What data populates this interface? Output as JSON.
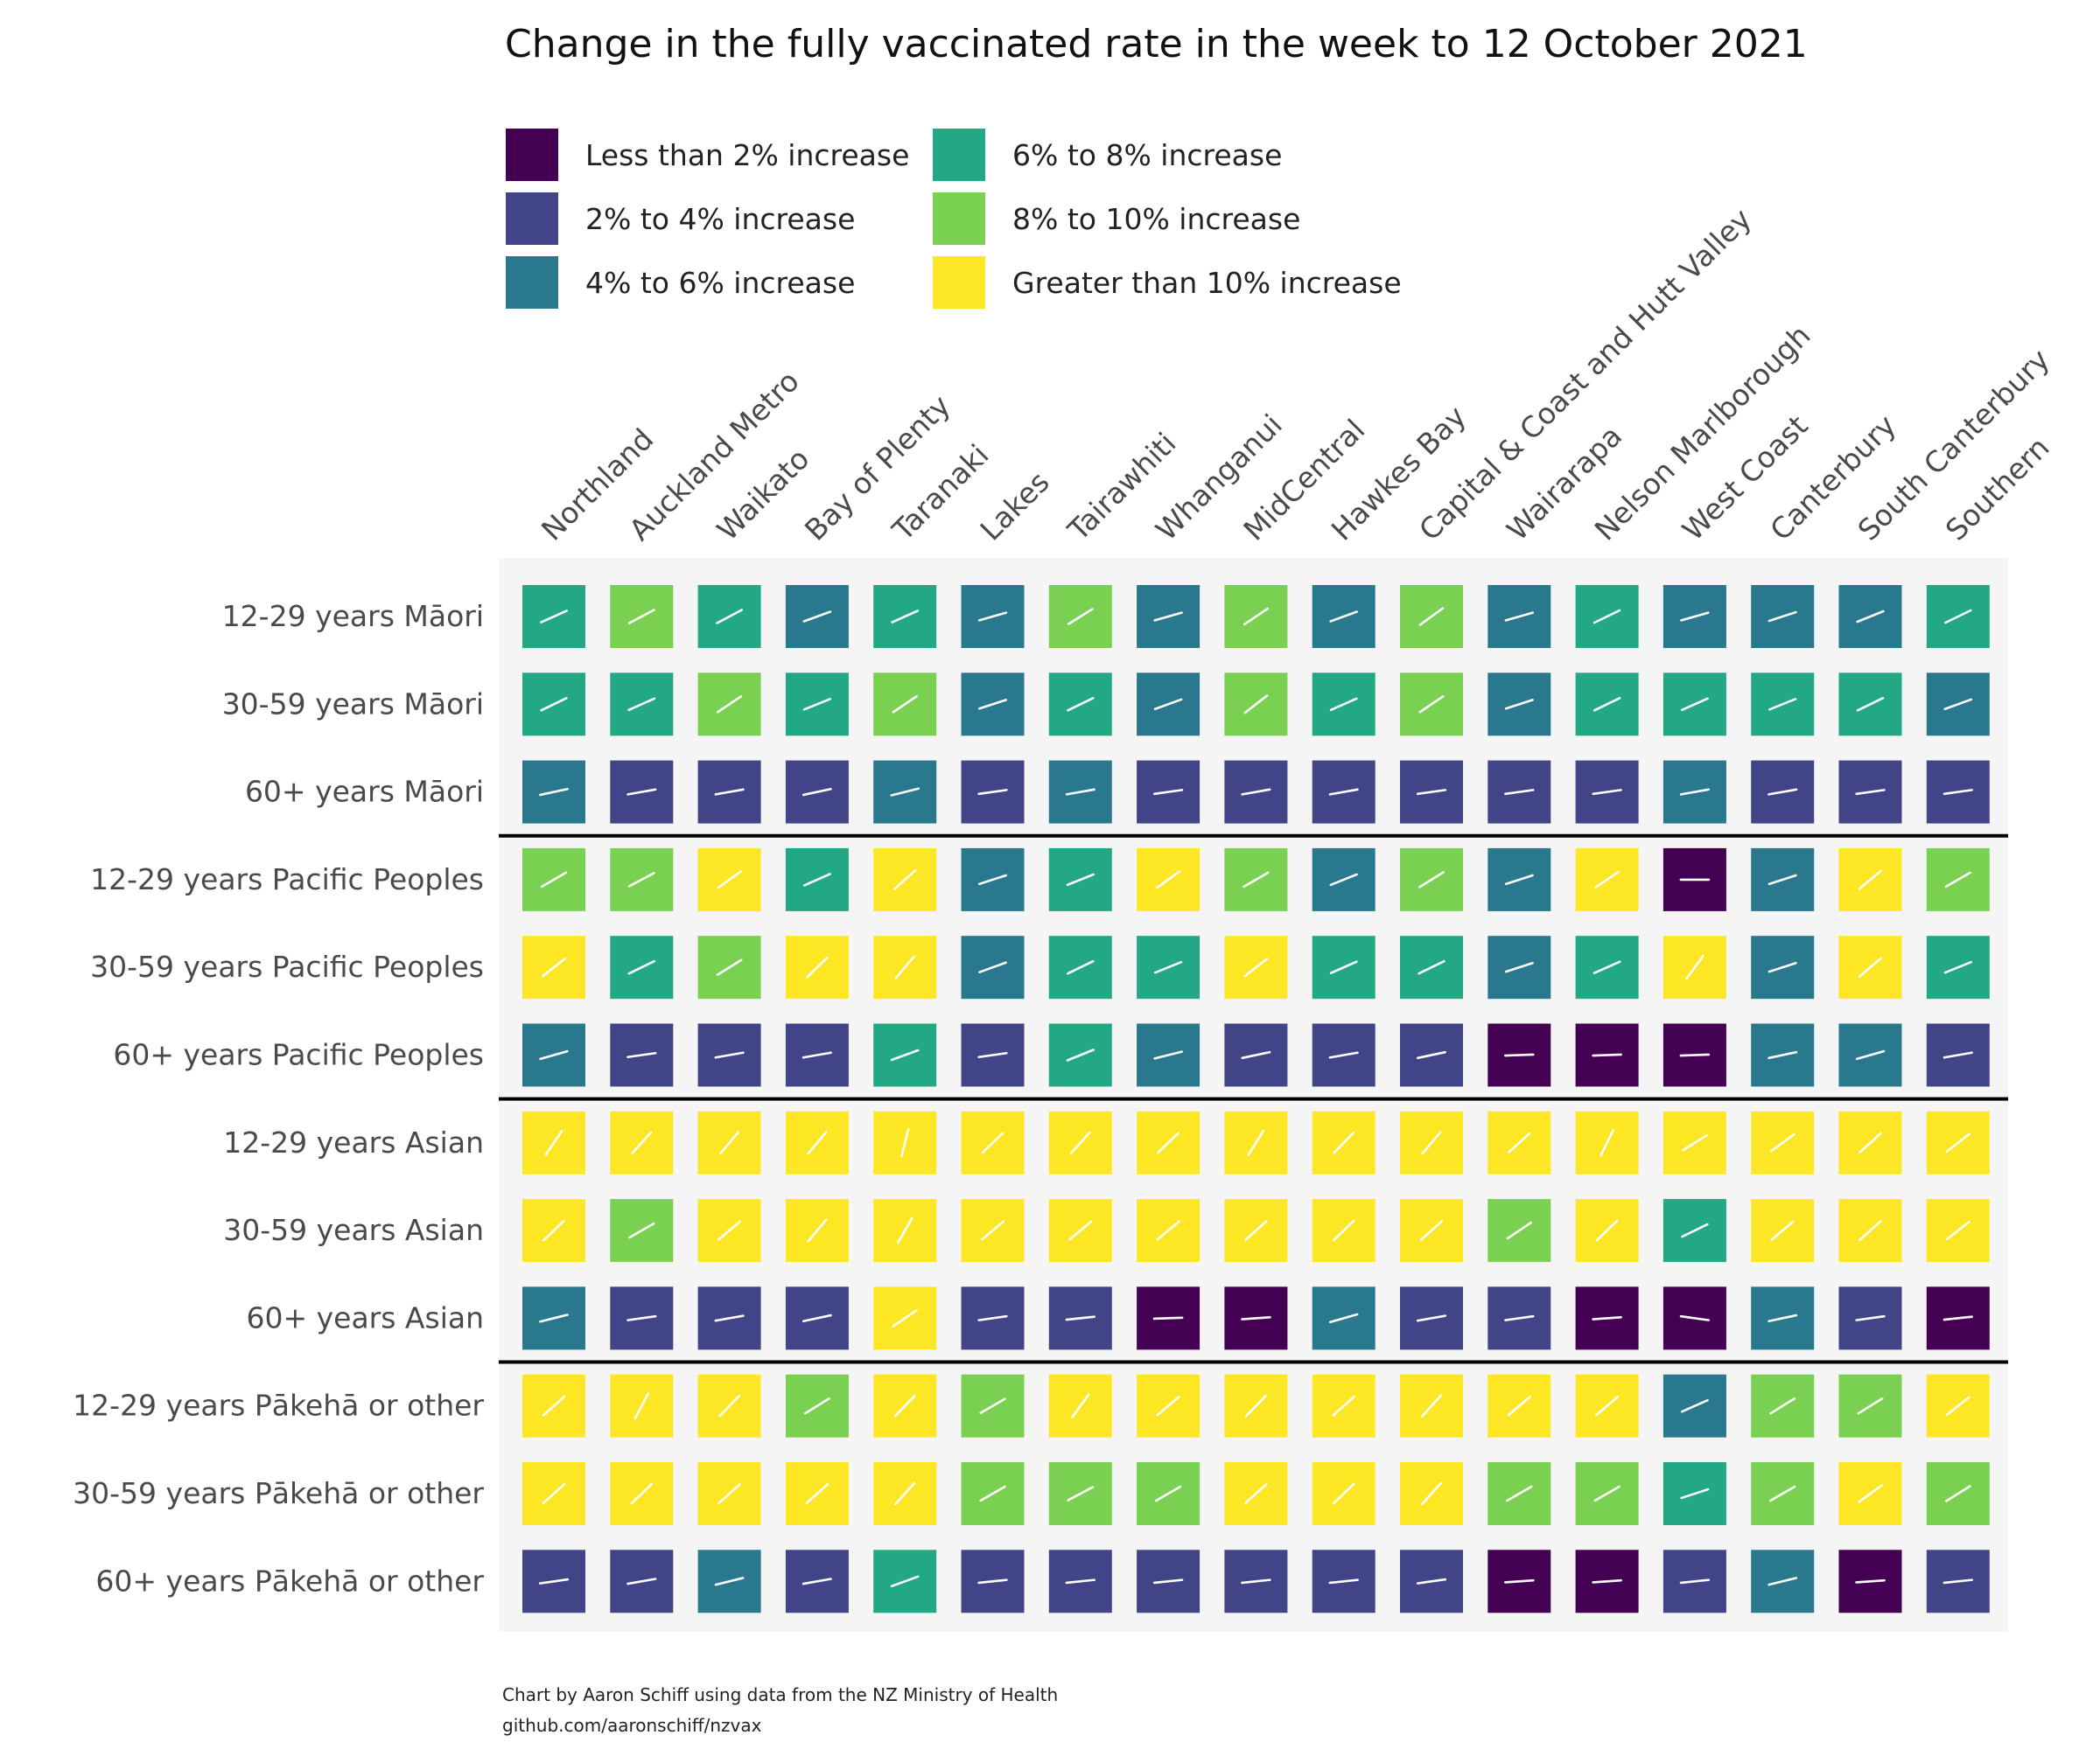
{
  "chart_data": {
    "type": "heatmap",
    "title": "Change in the fully vaccinated rate in the week to 12 October 2021",
    "caption": [
      "Chart by Aaron Schiff using data from the NZ Ministry of Health",
      "github.com/aaronschiff/nzvax"
    ],
    "legend": [
      {
        "label": "Less than 2% increase",
        "color": "#440154"
      },
      {
        "label": "2% to 4% increase",
        "color": "#414487"
      },
      {
        "label": "4% to 6% increase",
        "color": "#2A788E"
      },
      {
        "label": "6% to 8% increase",
        "color": "#22A884"
      },
      {
        "label": "8% to 10% increase",
        "color": "#7AD151"
      },
      {
        "label": "Greater than 10% increase",
        "color": "#FDE725"
      }
    ],
    "columns": [
      "Northland",
      "Auckland Metro",
      "Waikato",
      "Bay of Plenty",
      "Taranaki",
      "Lakes",
      "Tairawhiti",
      "Whanganui",
      "MidCentral",
      "Hawkes Bay",
      "Capital & Coast and Hutt Valley",
      "Wairarapa",
      "Nelson Marlborough",
      "West Coast",
      "Canterbury",
      "South Canterbury",
      "Southern"
    ],
    "rows": [
      "12-29 years Māori",
      "30-59 years Māori",
      "60+ years Māori",
      "12-29 years Pacific Peoples",
      "30-59 years Pacific Peoples",
      "60+ years Pacific Peoples",
      "12-29 years Asian",
      "30-59 years Asian",
      "60+ years Asian",
      "12-29 years Pākehā or other",
      "30-59 years Pākehā or other",
      "60+ years Pākehā or other"
    ],
    "group_separators_after_rows": [
      2,
      5,
      8
    ],
    "values_category_index": [
      [
        3,
        4,
        3,
        2,
        3,
        2,
        4,
        2,
        4,
        2,
        4,
        2,
        3,
        2,
        2,
        2,
        3
      ],
      [
        3,
        3,
        4,
        3,
        4,
        2,
        3,
        2,
        4,
        3,
        4,
        2,
        3,
        3,
        3,
        3,
        2
      ],
      [
        2,
        1,
        1,
        1,
        2,
        1,
        2,
        1,
        1,
        1,
        1,
        1,
        1,
        2,
        1,
        1,
        1
      ],
      [
        4,
        4,
        5,
        3,
        5,
        2,
        3,
        5,
        4,
        2,
        4,
        2,
        5,
        0,
        2,
        5,
        4
      ],
      [
        5,
        3,
        4,
        5,
        5,
        2,
        3,
        3,
        5,
        3,
        3,
        2,
        3,
        5,
        2,
        5,
        3
      ],
      [
        2,
        1,
        1,
        1,
        3,
        1,
        3,
        2,
        1,
        1,
        1,
        0,
        0,
        0,
        2,
        2,
        1
      ],
      [
        5,
        5,
        5,
        5,
        5,
        5,
        5,
        5,
        5,
        5,
        5,
        5,
        5,
        5,
        5,
        5,
        5
      ],
      [
        5,
        4,
        5,
        5,
        5,
        5,
        5,
        5,
        5,
        5,
        5,
        4,
        5,
        3,
        5,
        5,
        5
      ],
      [
        2,
        1,
        1,
        1,
        5,
        1,
        1,
        0,
        0,
        2,
        1,
        1,
        0,
        0,
        2,
        1,
        0
      ],
      [
        5,
        5,
        5,
        4,
        5,
        4,
        5,
        5,
        5,
        5,
        5,
        5,
        5,
        2,
        4,
        4,
        5
      ],
      [
        5,
        5,
        5,
        5,
        5,
        4,
        4,
        4,
        5,
        5,
        5,
        4,
        4,
        3,
        4,
        5,
        4
      ],
      [
        1,
        1,
        2,
        1,
        3,
        1,
        1,
        1,
        1,
        1,
        1,
        0,
        0,
        1,
        2,
        0,
        1
      ]
    ],
    "slope_angle_deg": [
      [
        24,
        28,
        28,
        20,
        24,
        16,
        32,
        16,
        34,
        20,
        36,
        16,
        26,
        16,
        18,
        22,
        26
      ],
      [
        26,
        24,
        34,
        22,
        34,
        18,
        26,
        20,
        38,
        24,
        34,
        18,
        26,
        24,
        22,
        26,
        20
      ],
      [
        12,
        10,
        10,
        12,
        14,
        8,
        10,
        8,
        10,
        10,
        8,
        8,
        8,
        10,
        10,
        8,
        8
      ],
      [
        30,
        28,
        36,
        24,
        42,
        18,
        22,
        36,
        30,
        22,
        32,
        18,
        34,
        0,
        18,
        40,
        30
      ],
      [
        38,
        26,
        32,
        44,
        50,
        20,
        26,
        22,
        38,
        24,
        26,
        18,
        24,
        54,
        18,
        40,
        22
      ],
      [
        16,
        8,
        10,
        10,
        20,
        8,
        22,
        14,
        12,
        10,
        12,
        2,
        2,
        2,
        12,
        16,
        10
      ],
      [
        56,
        48,
        50,
        50,
        76,
        44,
        48,
        44,
        58,
        46,
        50,
        42,
        64,
        32,
        36,
        42,
        38
      ],
      [
        44,
        30,
        40,
        50,
        60,
        40,
        40,
        40,
        42,
        44,
        42,
        34,
        44,
        26,
        40,
        42,
        38
      ],
      [
        14,
        8,
        10,
        12,
        34,
        8,
        6,
        2,
        4,
        16,
        10,
        8,
        4,
        -8,
        12,
        8,
        6
      ],
      [
        42,
        62,
        46,
        32,
        46,
        30,
        54,
        40,
        46,
        42,
        48,
        40,
        40,
        24,
        32,
        32,
        38
      ],
      [
        42,
        44,
        42,
        42,
        48,
        30,
        28,
        30,
        42,
        44,
        48,
        30,
        30,
        18,
        30,
        36,
        32
      ],
      [
        8,
        10,
        14,
        10,
        20,
        6,
        6,
        6,
        6,
        6,
        8,
        4,
        4,
        6,
        14,
        4,
        6
      ]
    ]
  }
}
